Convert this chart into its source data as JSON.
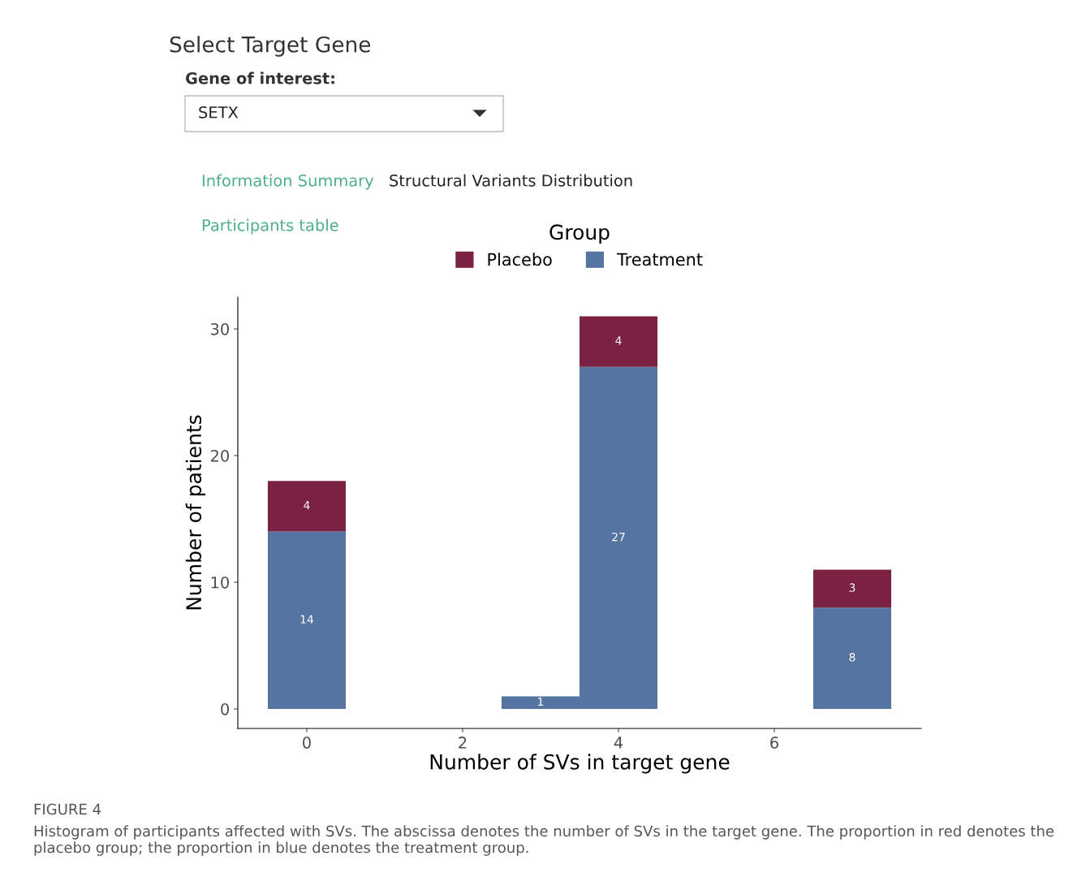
{
  "chart_data": {
    "type": "bar",
    "stacked": true,
    "xlabel": "Number of SVs in target gene",
    "ylabel": "Number of patients",
    "legend_title": "Group",
    "legend": "top",
    "x": [
      0,
      3,
      4,
      7
    ],
    "series": [
      {
        "name": "Treatment",
        "color": "#55749f",
        "values": [
          14,
          1,
          27,
          8
        ],
        "value_labels": [
          "14",
          "1",
          "27",
          "8"
        ]
      },
      {
        "name": "Placebo",
        "color": "#7a2144",
        "values": [
          4,
          0,
          4,
          3
        ],
        "value_labels": [
          "4",
          null,
          "4",
          "3"
        ]
      }
    ],
    "xlim": [
      -0.885,
      7.885
    ],
    "ylim": [
      -1.54,
      32.5
    ],
    "xticks": [
      0,
      2,
      4,
      6
    ],
    "yticks": [
      0,
      10,
      20,
      30
    ],
    "grid": false,
    "annotations": [
      "Select Target Gene",
      "Gene of interest:",
      "SETX",
      "Information Summary",
      "Structural Variants Distribution",
      "Participants table",
      "FIGURE 4",
      "Histogram of participants affected with SVs. The abscissa denotes the number of SVs in the target gene. The proportion in red denotes the placebo group; the proportion in blue denotes the treatment group."
    ]
  }
}
